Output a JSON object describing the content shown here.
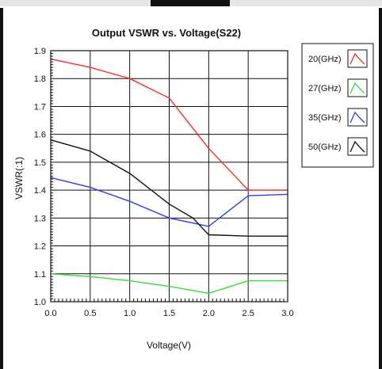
{
  "chart_data": {
    "type": "line",
    "title": "Output VSWR vs. Voltage(S22)",
    "xlabel": "Voltage(V)",
    "ylabel": "VSWR(:1)",
    "xlim": [
      0.0,
      3.0
    ],
    "ylim": [
      1.0,
      1.9
    ],
    "xticks": [
      "0.0",
      "0.5",
      "1.0",
      "1.5",
      "2.0",
      "2.5",
      "3.0"
    ],
    "yticks": [
      "1.0",
      "1.1",
      "1.2",
      "1.3",
      "1.4",
      "1.5",
      "1.6",
      "1.7",
      "1.8",
      "1.9"
    ],
    "grid": true,
    "legend_position": "right",
    "series": [
      {
        "name": "20(GHz)",
        "color": "#ff2a2a",
        "x": [
          0.0,
          0.5,
          1.0,
          1.5,
          2.0,
          2.5,
          3.0
        ],
        "y": [
          1.87,
          1.84,
          1.8,
          1.73,
          1.55,
          1.4,
          1.4
        ]
      },
      {
        "name": "27(GHz)",
        "color": "#33dd33",
        "x": [
          0.0,
          0.5,
          1.0,
          1.5,
          2.0,
          2.5,
          3.0
        ],
        "y": [
          1.1,
          1.09,
          1.075,
          1.055,
          1.03,
          1.075,
          1.075
        ]
      },
      {
        "name": "35(GHz)",
        "color": "#2a3cff",
        "x": [
          0.0,
          0.5,
          1.0,
          1.5,
          2.0,
          2.5,
          3.0
        ],
        "y": [
          1.445,
          1.41,
          1.36,
          1.3,
          1.27,
          1.38,
          1.385
        ]
      },
      {
        "name": "50(GHz)",
        "color": "#111111",
        "x": [
          0.0,
          0.5,
          1.0,
          1.5,
          1.8,
          2.0,
          2.5,
          3.0
        ],
        "y": [
          1.58,
          1.54,
          1.46,
          1.35,
          1.3,
          1.24,
          1.235,
          1.235
        ]
      }
    ]
  }
}
